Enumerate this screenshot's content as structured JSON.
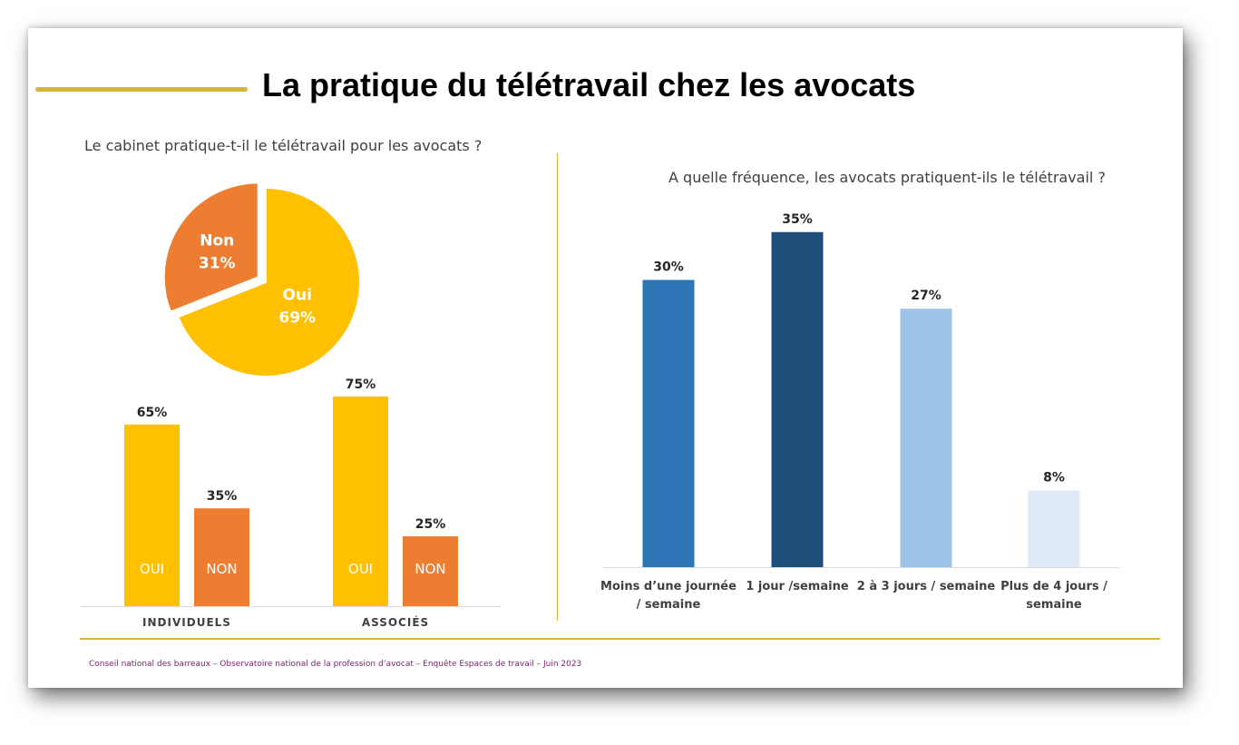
{
  "slide": {
    "title": "La pratique du télétravail chez les avocats",
    "footer": "Conseil national des barreaux – Observatoire national de la profession d’avocat – Enquête Espaces de travail – Juin 2023",
    "accent_color": "#d6b53b"
  },
  "chart_data": [
    {
      "type": "pie",
      "title": "Le cabinet pratique-t-il le télétravail pour les avocats ?",
      "slices": [
        {
          "label": "Oui",
          "value": 69,
          "display": "69%",
          "color": "#ffc000"
        },
        {
          "label": "Non",
          "value": 31,
          "display": "31%",
          "color": "#ed7d31"
        }
      ]
    },
    {
      "type": "bar",
      "title": "",
      "categories": [
        "INDIVIDUELS",
        "ASSOCIÉS"
      ],
      "series": [
        {
          "name": "OUI",
          "values": [
            65,
            75
          ],
          "labels": [
            "65%",
            "75%"
          ],
          "color": "#ffc000"
        },
        {
          "name": "NON",
          "values": [
            35,
            25
          ],
          "labels": [
            "35%",
            "25%"
          ],
          "color": "#ed7d31"
        }
      ],
      "ylim": [
        0,
        100
      ]
    },
    {
      "type": "bar",
      "title": "A quelle fréquence, les avocats pratiquent-ils le télétravail ?",
      "categories": [
        [
          "Moins d’une journée",
          "/ semaine"
        ],
        [
          "1 jour /semaine"
        ],
        [
          "2 à 3 jours / semaine"
        ],
        [
          "Plus de 4 jours /",
          "semaine"
        ]
      ],
      "values": [
        30,
        35,
        27,
        8
      ],
      "labels": [
        "30%",
        "35%",
        "27%",
        "8%"
      ],
      "colors": [
        "#2e75b6",
        "#1f4e79",
        "#9dc3e6",
        "#deebf7"
      ],
      "label_colors": [
        "#262626",
        "#c00000",
        "#262626",
        "#262626"
      ],
      "ylim": [
        0,
        40
      ]
    }
  ]
}
